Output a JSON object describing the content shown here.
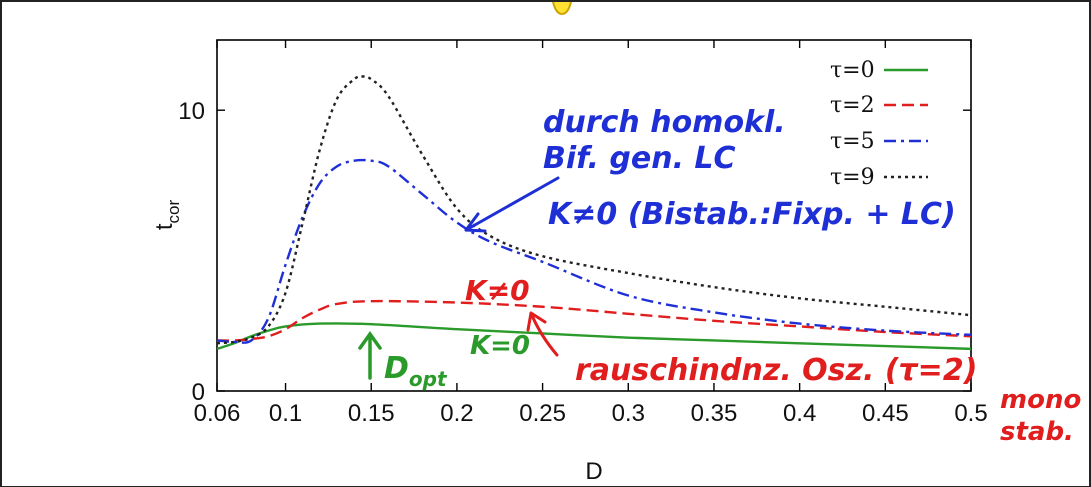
{
  "chart_data": {
    "type": "line",
    "title": "",
    "xlabel": "D",
    "ylabel": "t",
    "ylabel_sub": "cor",
    "xlim": [
      0.06,
      0.5
    ],
    "ylim": [
      0,
      12.5
    ],
    "xticks": [
      0.06,
      0.1,
      0.15,
      0.2,
      0.25,
      0.3,
      0.35,
      0.4,
      0.45,
      0.5
    ],
    "xtick_labels": [
      "0.06",
      "0.1",
      "0.15",
      "0.2",
      "0.25",
      "0.3",
      "0.35",
      "0.4",
      "0.45",
      "0.5"
    ],
    "yticks": [
      0,
      10
    ],
    "ytick_labels": [
      "0",
      "10"
    ],
    "grid": false,
    "legend_position": "top-right",
    "series": [
      {
        "name": "τ=0",
        "color": "#2a9a2a",
        "dash": "solid",
        "x": [
          0.06,
          0.07,
          0.08,
          0.09,
          0.1,
          0.12,
          0.15,
          0.2,
          0.25,
          0.3,
          0.35,
          0.4,
          0.45,
          0.5
        ],
        "y": [
          1.5,
          1.7,
          1.95,
          2.15,
          2.3,
          2.4,
          2.38,
          2.2,
          2.05,
          1.9,
          1.8,
          1.7,
          1.6,
          1.5
        ]
      },
      {
        "name": "τ=2",
        "color": "#e01e1e",
        "dash": "long",
        "x": [
          0.06,
          0.07,
          0.08,
          0.09,
          0.1,
          0.11,
          0.12,
          0.13,
          0.15,
          0.2,
          0.25,
          0.3,
          0.35,
          0.4,
          0.45,
          0.5
        ],
        "y": [
          1.8,
          1.8,
          1.85,
          1.95,
          2.2,
          2.6,
          2.9,
          3.1,
          3.2,
          3.15,
          3.0,
          2.75,
          2.5,
          2.3,
          2.1,
          1.95
        ]
      },
      {
        "name": "τ=5",
        "color": "#1f2fd6",
        "dash": "dashdot",
        "x": [
          0.06,
          0.07,
          0.08,
          0.09,
          0.1,
          0.11,
          0.12,
          0.13,
          0.14,
          0.15,
          0.16,
          0.18,
          0.2,
          0.22,
          0.25,
          0.3,
          0.35,
          0.4,
          0.45,
          0.5
        ],
        "y": [
          1.8,
          1.75,
          1.8,
          2.6,
          4.5,
          6.2,
          7.4,
          8.0,
          8.2,
          8.2,
          8.0,
          7.0,
          6.0,
          5.3,
          4.6,
          3.4,
          2.8,
          2.4,
          2.15,
          2.0
        ]
      },
      {
        "name": "τ=9",
        "color": "#222222",
        "dash": "dotted",
        "x": [
          0.06,
          0.07,
          0.08,
          0.09,
          0.1,
          0.11,
          0.12,
          0.13,
          0.14,
          0.145,
          0.15,
          0.16,
          0.18,
          0.2,
          0.22,
          0.25,
          0.3,
          0.35,
          0.4,
          0.45,
          0.5
        ],
        "y": [
          1.7,
          1.75,
          1.9,
          2.3,
          3.5,
          6.0,
          8.6,
          10.4,
          11.1,
          11.2,
          11.1,
          10.5,
          8.4,
          6.5,
          5.5,
          4.8,
          4.2,
          3.7,
          3.3,
          3.0,
          2.7
        ]
      }
    ],
    "annotations": [
      {
        "text": "durch homokl.",
        "color": "#1f2fd6"
      },
      {
        "text": "Bif. gen. LC",
        "color": "#1f2fd6"
      },
      {
        "text": "K≠0 (Bistab.:Fixp. + LC)",
        "color": "#1f2fd6"
      },
      {
        "text": "K≠0",
        "color": "#e01e1e"
      },
      {
        "text": "K=0",
        "color": "#2a9a2a"
      },
      {
        "text": "rauschindnz. Osz. (τ=2)",
        "color": "#e01e1e"
      },
      {
        "text": "mono",
        "color": "#e01e1e"
      },
      {
        "text": "stab.",
        "color": "#e01e1e"
      },
      {
        "text": "D",
        "sub": "opt",
        "color": "#2a9a2a"
      }
    ]
  }
}
